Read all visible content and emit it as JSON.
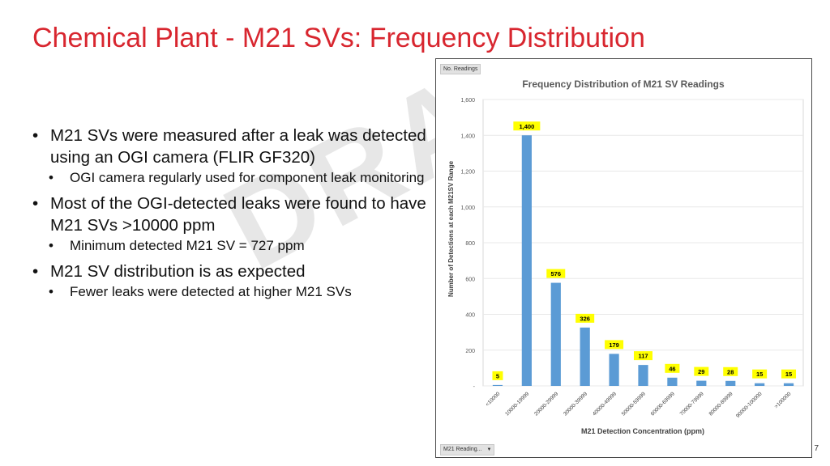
{
  "slide": {
    "title": "Chemical Plant - M21 SVs: Frequency Distribution",
    "watermark": "DRA",
    "page_number": "7"
  },
  "bullets": [
    {
      "text": "M21 SVs were measured after a leak was detected using an OGI camera (FLIR GF320)",
      "sub": [
        "OGI camera regularly used for component leak monitoring"
      ]
    },
    {
      "text": "Most of the OGI-detected leaks were found to have M21 SVs >10000 ppm",
      "sub": [
        "Minimum detected M21 SV = 727 ppm"
      ]
    },
    {
      "text": "M21 SV distribution is as expected",
      "sub": [
        "Fewer leaks were detected at higher M21 SVs"
      ]
    }
  ],
  "pivot": {
    "field_button": "No. Readings",
    "filter_button": "M21 Reading...",
    "filter_icon": "dropdown-arrow-icon"
  },
  "chart_data": {
    "type": "bar",
    "title": "Frequency Distribution of M21 SV Readings",
    "xlabel": "M21 Detection Concentration (ppm)",
    "ylabel": "Number of Detections at each M21SV Range",
    "categories": [
      "<10000",
      "10000-19999",
      "20000-29999",
      "30000-39999",
      "40000-49999",
      "50000-59999",
      "60000-69999",
      "70000-79999",
      "80000-89999",
      "90000-100000",
      ">100000"
    ],
    "values": [
      5,
      1400,
      576,
      326,
      179,
      117,
      46,
      29,
      28,
      15,
      15
    ],
    "data_labels": [
      "5",
      "1,400",
      "576",
      "326",
      "179",
      "117",
      "46",
      "29",
      "28",
      "15",
      "15"
    ],
    "ylim": [
      0,
      1600
    ],
    "yticks": [
      0,
      200,
      400,
      600,
      800,
      1000,
      1200,
      1400,
      1600
    ],
    "ytick_labels": [
      "-",
      "200",
      "400",
      "600",
      "800",
      "1,000",
      "1,200",
      "1,400",
      "1,600"
    ],
    "grid": true,
    "legend": "none",
    "bar_color": "#5b9bd5",
    "label_bg": "#ffff00"
  }
}
